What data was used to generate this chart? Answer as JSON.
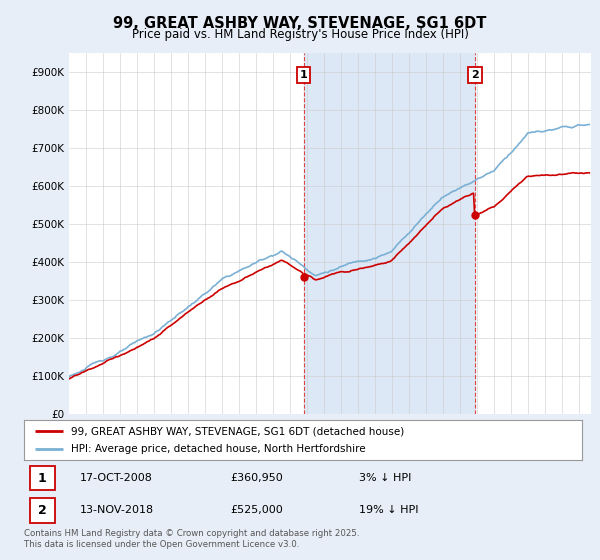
{
  "title": "99, GREAT ASHBY WAY, STEVENAGE, SG1 6DT",
  "subtitle": "Price paid vs. HM Land Registry's House Price Index (HPI)",
  "ylabel_ticks": [
    "£0",
    "£100K",
    "£200K",
    "£300K",
    "£400K",
    "£500K",
    "£600K",
    "£700K",
    "£800K",
    "£900K"
  ],
  "ytick_vals": [
    0,
    100000,
    200000,
    300000,
    400000,
    500000,
    600000,
    700000,
    800000,
    900000
  ],
  "xlim": [
    1995.0,
    2025.7
  ],
  "ylim": [
    0,
    950000
  ],
  "hpi_color": "#7ab0d4",
  "price_color": "#CC0000",
  "shade_color": "#dce8f5",
  "vline_color": "#dd4444",
  "sale1_x": 2008.8,
  "sale1_y": 360950,
  "sale2_x": 2018.87,
  "sale2_y": 525000,
  "annot1_label": "1",
  "annot2_label": "2",
  "legend_price_label": "99, GREAT ASHBY WAY, STEVENAGE, SG1 6DT (detached house)",
  "legend_hpi_label": "HPI: Average price, detached house, North Hertfordshire",
  "note1_label": "1",
  "note1_date": "17-OCT-2008",
  "note1_price": "£360,950",
  "note1_hpi": "3% ↓ HPI",
  "note2_label": "2",
  "note2_date": "13-NOV-2018",
  "note2_price": "£525,000",
  "note2_hpi": "19% ↓ HPI",
  "footer": "Contains HM Land Registry data © Crown copyright and database right 2025.\nThis data is licensed under the Open Government Licence v3.0.",
  "background_color": "#e8eef8",
  "plot_bg_color": "#ffffff"
}
